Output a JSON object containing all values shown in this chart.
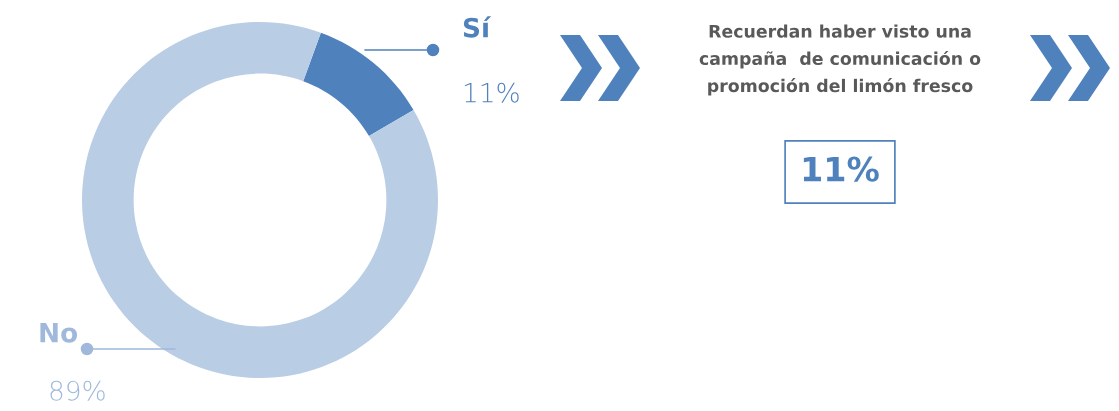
{
  "chart_data": {
    "type": "donut",
    "categories": [
      "Sí",
      "No"
    ],
    "values": [
      11,
      89
    ],
    "colors": [
      "#4f81bd",
      "#b9cde5"
    ],
    "value_labels": [
      "11%",
      "89%"
    ],
    "annotations": [
      "Recuerdan haber visto una\ncampaña  de comunicación o\npromoción del limón fresco",
      "11%"
    ]
  }
}
